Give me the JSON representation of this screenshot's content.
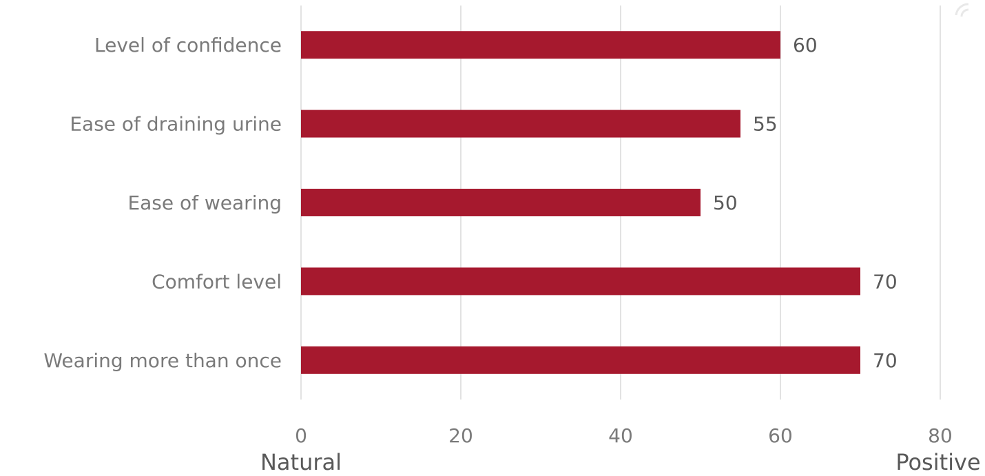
{
  "chart_data": {
    "type": "bar",
    "orientation": "horizontal",
    "categories": [
      "Level of confidence",
      "Ease of draining urine",
      "Ease of wearing",
      "Comfort level",
      "Wearing more than once"
    ],
    "values": [
      60,
      55,
      50,
      70,
      70
    ],
    "xlim": [
      0,
      80
    ],
    "x_ticks": [
      "0",
      "20",
      "40",
      "60",
      "80"
    ],
    "x_tick_values": [
      0,
      20,
      40,
      60,
      80
    ],
    "x_end_labels": {
      "left": "Natural",
      "right": "Positive"
    },
    "bar_color": "#a6192e",
    "grid": true,
    "data_labels": true,
    "legend": "none"
  }
}
